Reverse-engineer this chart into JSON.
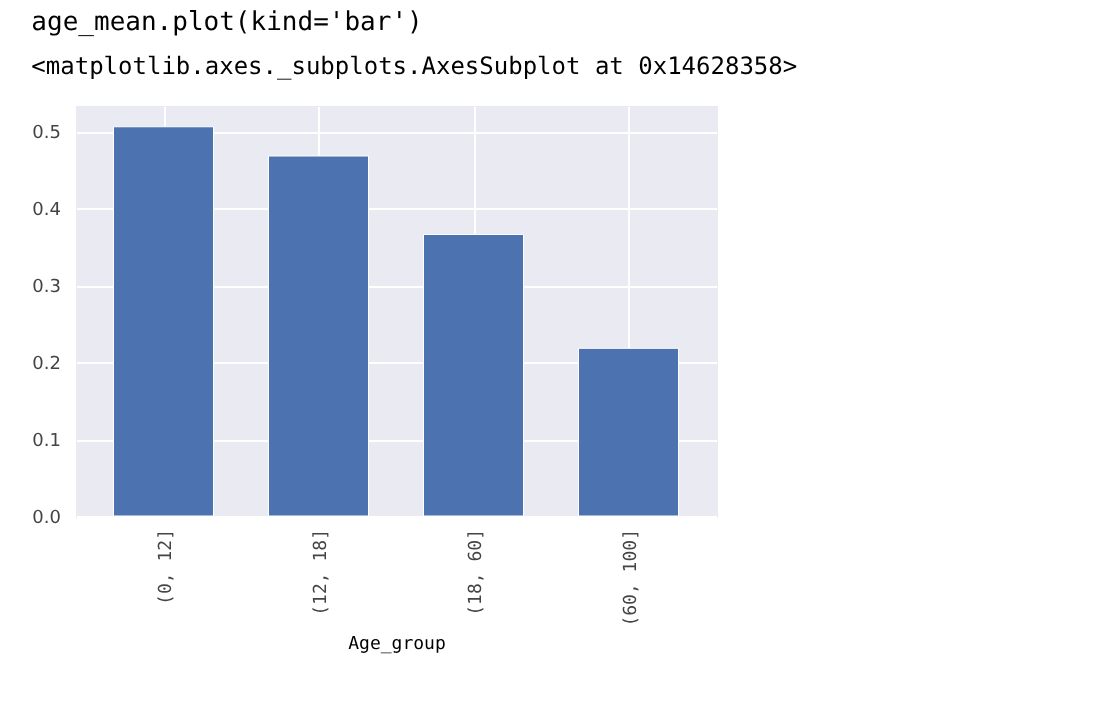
{
  "chart_data": {
    "type": "bar",
    "annotations": [
      "age_mean.plot(kind='bar')",
      "<matplotlib.axes._subplots.AxesSubplot at 0x14628358>"
    ],
    "xlabel": "Age_group",
    "categories": [
      "(0, 12]",
      "(12, 18]",
      "(18, 60]",
      "(60, 100]"
    ],
    "values": [
      0.506,
      0.468,
      0.366,
      0.218
    ],
    "color": "#4c72b0",
    "ylim": [
      0,
      0.533
    ],
    "yticks": [
      {
        "value": 0,
        "label": "0.0"
      },
      0.1,
      0.2,
      0.3,
      0.4,
      0.5
    ],
    "grid": true
  }
}
